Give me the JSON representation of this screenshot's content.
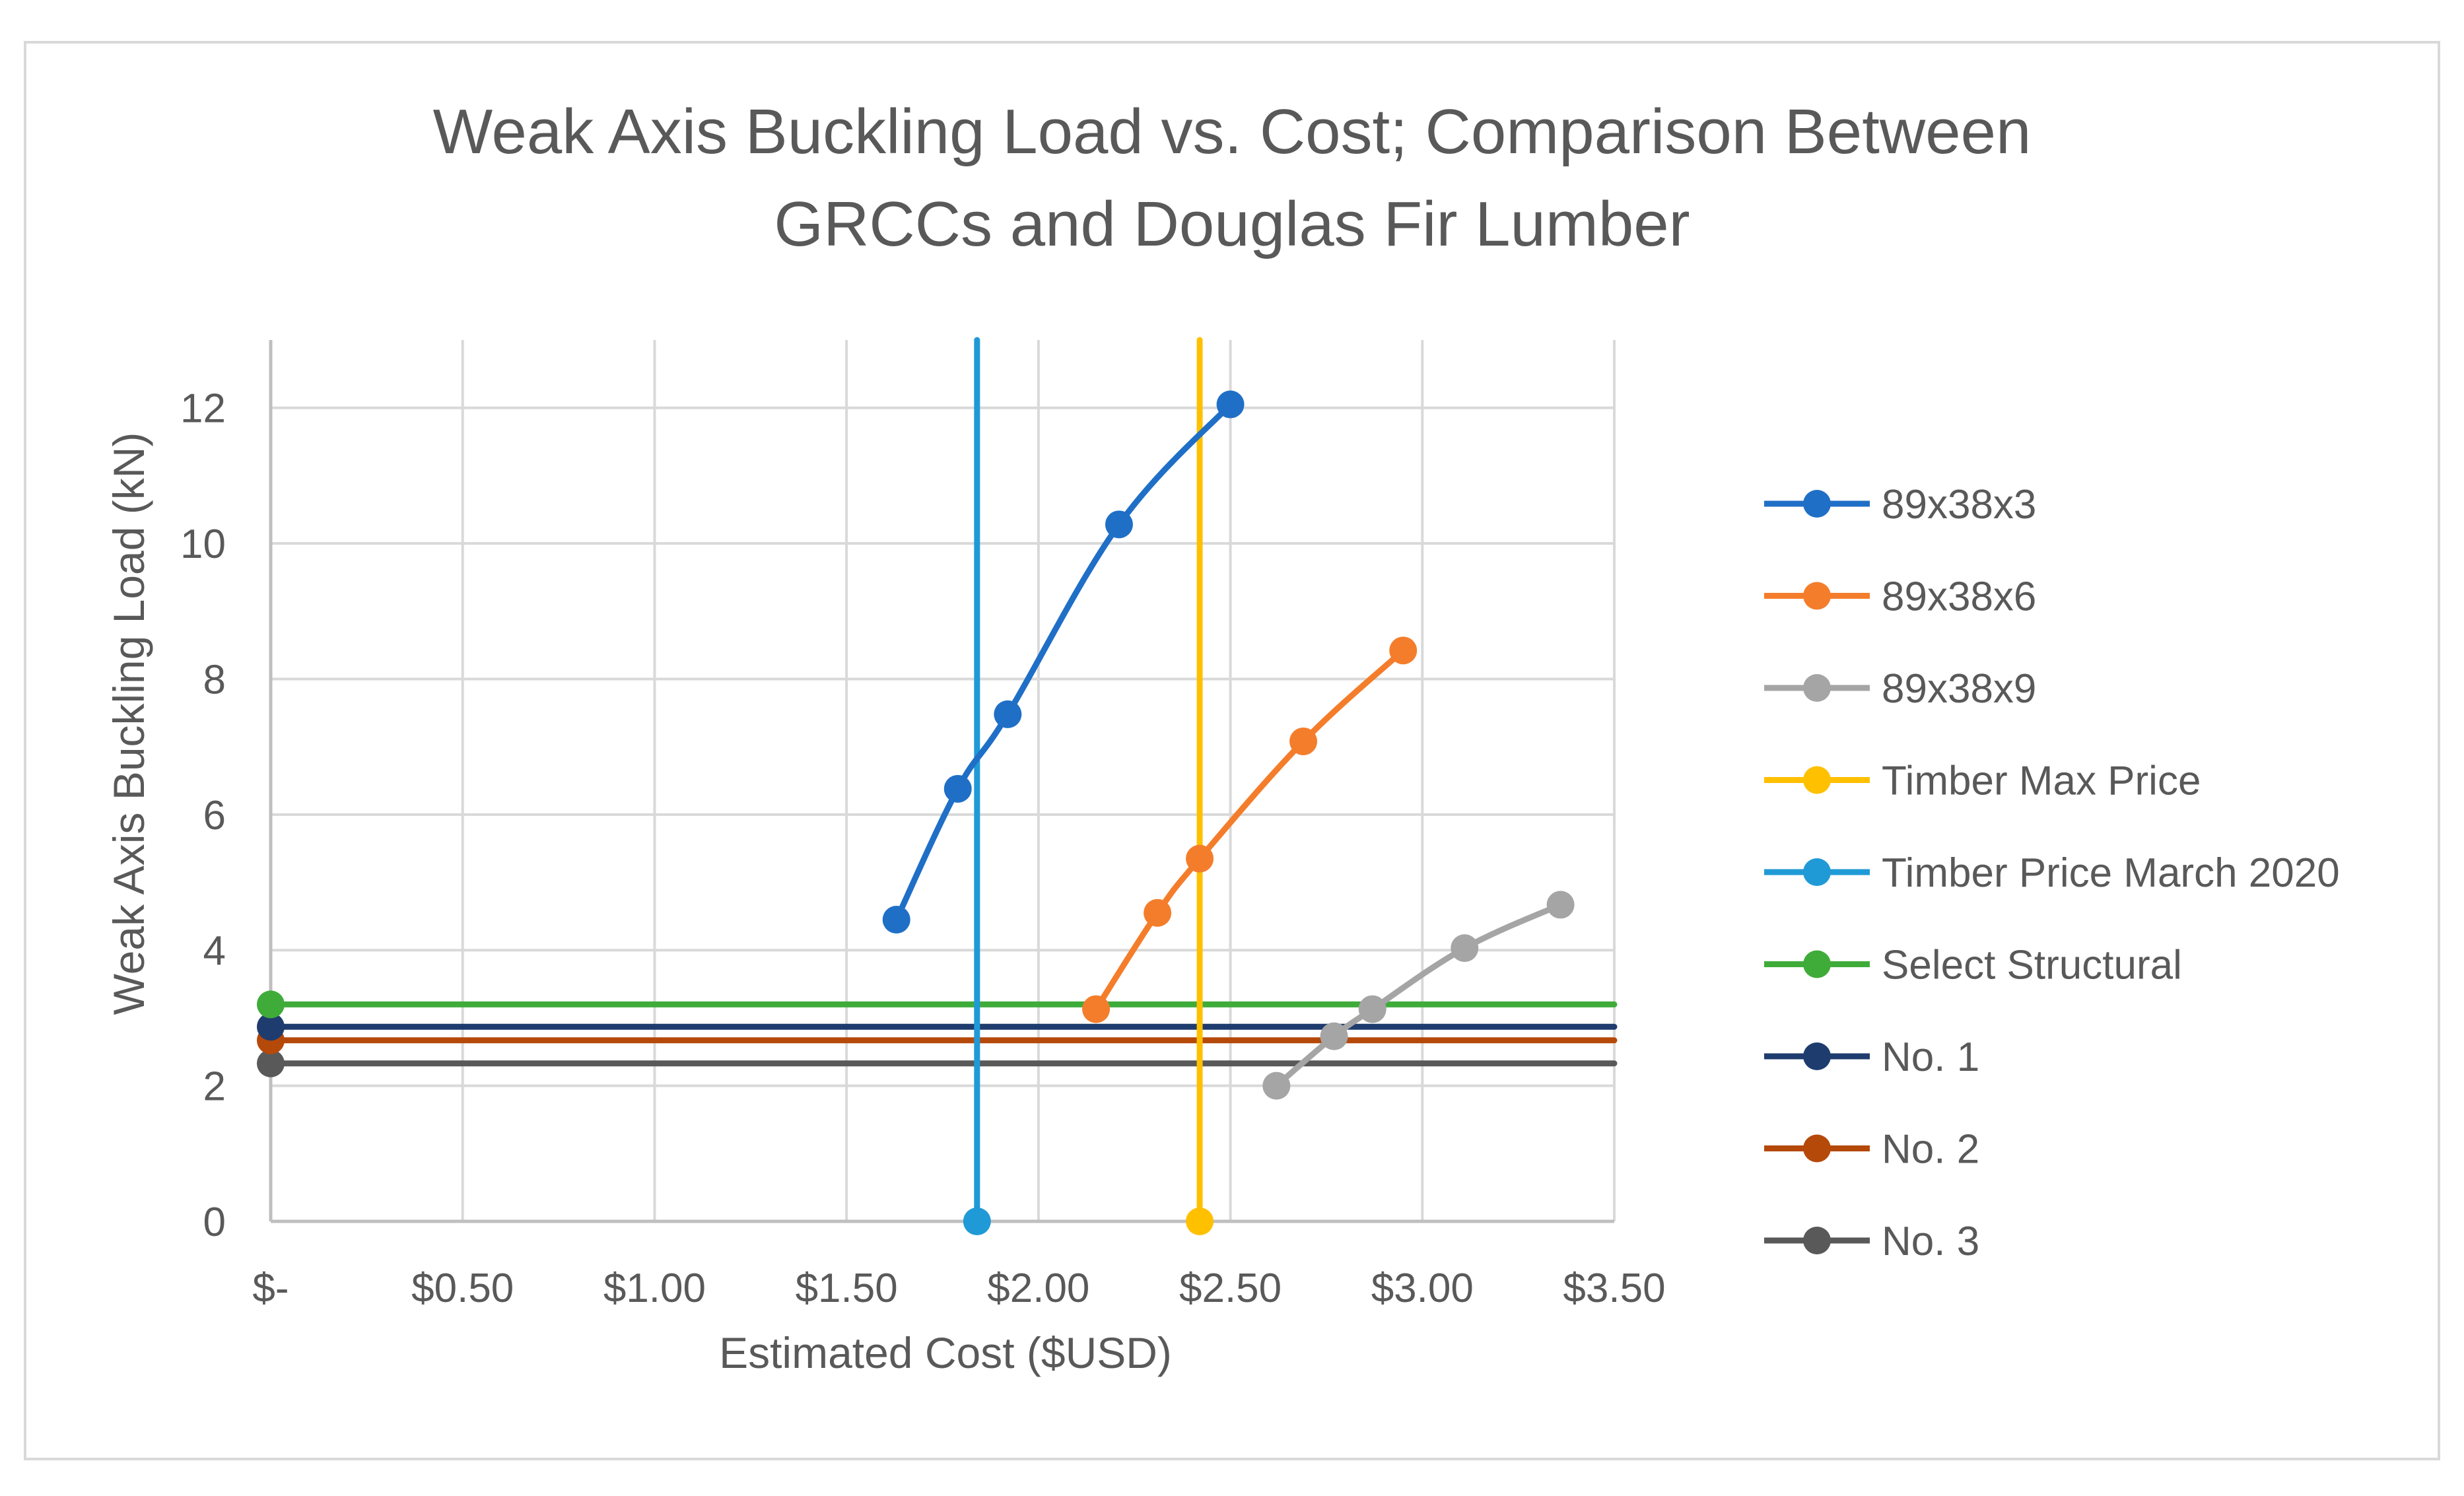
{
  "chart_data": {
    "type": "line",
    "title": [
      "Weak Axis Buckling Load vs. Cost; Comparison Between",
      "GRCCs and Douglas Fir Lumber"
    ],
    "xlabel": "Estimated Cost ($USD)",
    "ylabel": "Weak Axis Buckling Load (kN)",
    "xlim": [
      0,
      3.5
    ],
    "ylim": [
      0,
      13
    ],
    "x_ticks": [
      0,
      0.5,
      1,
      1.5,
      2,
      2.5,
      3,
      3.5
    ],
    "x_tick_labels": [
      "$-",
      "$0.50",
      "$1.00",
      "$1.50",
      "$2.00",
      "$2.50",
      "$3.00",
      "$3.50"
    ],
    "y_ticks": [
      0,
      2,
      4,
      6,
      8,
      10,
      12
    ],
    "y_tick_labels": [
      "0",
      "2",
      "4",
      "6",
      "8",
      "10",
      "12"
    ],
    "grid": true,
    "legend_position": "right",
    "series": [
      {
        "name": "89x38x3",
        "color": "#1f6fc7",
        "smooth": true,
        "x": [
          1.63,
          1.79,
          1.92,
          2.21,
          2.5
        ],
        "y": [
          4.45,
          6.38,
          7.48,
          10.28,
          12.05
        ]
      },
      {
        "name": "89x38x6",
        "color": "#f47d2b",
        "smooth": true,
        "x": [
          2.15,
          2.31,
          2.42,
          2.69,
          2.95
        ],
        "y": [
          3.13,
          4.55,
          5.35,
          7.08,
          8.42
        ]
      },
      {
        "name": "89x38x9",
        "color": "#a5a5a5",
        "smooth": true,
        "x": [
          2.62,
          2.77,
          2.87,
          3.11,
          3.36
        ],
        "y": [
          2.0,
          2.73,
          3.13,
          4.03,
          4.67
        ]
      },
      {
        "name": "Timber Max Price",
        "color": "#ffc000",
        "smooth": false,
        "x": [
          2.42,
          2.42
        ],
        "y": [
          0,
          13
        ],
        "markers": [
          [
            2.42,
            0
          ]
        ]
      },
      {
        "name": "Timber Price March 2020",
        "color": "#1f9ad6",
        "smooth": false,
        "x": [
          1.84,
          1.84
        ],
        "y": [
          0,
          13
        ],
        "markers": [
          [
            1.84,
            0
          ]
        ]
      },
      {
        "name": "Select Structural",
        "color": "#3fac3a",
        "smooth": false,
        "x": [
          0,
          3.5
        ],
        "y": [
          3.2,
          3.2
        ],
        "markers": [
          [
            0,
            3.2
          ]
        ]
      },
      {
        "name": "No. 1",
        "color": "#1f3c6e",
        "smooth": false,
        "x": [
          0,
          3.5
        ],
        "y": [
          2.87,
          2.87
        ],
        "markers": [
          [
            0,
            2.87
          ]
        ]
      },
      {
        "name": "No. 2",
        "color": "#b5490a",
        "smooth": false,
        "x": [
          0,
          3.5
        ],
        "y": [
          2.67,
          2.67
        ],
        "markers": [
          [
            0,
            2.67
          ]
        ]
      },
      {
        "name": "No. 3",
        "color": "#595959",
        "smooth": false,
        "x": [
          0,
          3.5
        ],
        "y": [
          2.33,
          2.33
        ],
        "markers": [
          [
            0,
            2.33
          ]
        ]
      }
    ]
  }
}
